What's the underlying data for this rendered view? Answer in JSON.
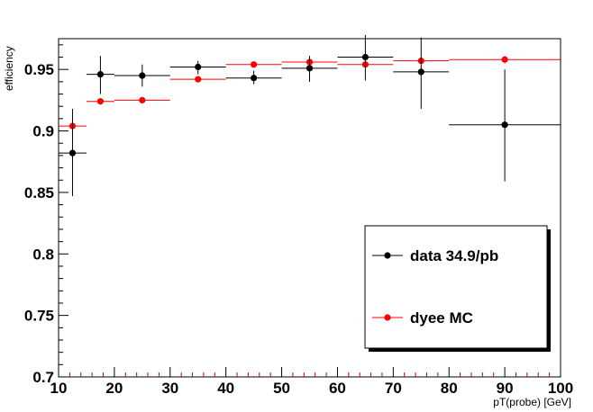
{
  "chart_data": {
    "type": "scatter",
    "xlabel": "pT(probe) [GeV]",
    "ylabel": "efficiency",
    "xlim": [
      10,
      100
    ],
    "ylim": [
      0.7,
      0.975
    ],
    "x_ticks": [
      10,
      20,
      30,
      40,
      50,
      60,
      70,
      80,
      90,
      100
    ],
    "y_ticks": [
      0.7,
      0.75,
      0.8,
      0.85,
      0.9,
      0.95
    ],
    "x_tick_labels": [
      "10",
      "20",
      "30",
      "40",
      "50",
      "60",
      "70",
      "80",
      "90",
      "100"
    ],
    "y_tick_labels": [
      "0.7",
      "0.75",
      "0.8",
      "0.85",
      "0.9",
      "0.95"
    ],
    "grid": false,
    "legend_position": "bottom-right",
    "series": [
      {
        "name": "data 34.9/pb",
        "color": "#000000",
        "points": [
          {
            "x": 12.5,
            "y": 0.882,
            "xlow": 10,
            "xhigh": 15,
            "ylow": 0.847,
            "yhigh": 0.918
          },
          {
            "x": 17.5,
            "y": 0.946,
            "xlow": 15,
            "xhigh": 20,
            "ylow": 0.93,
            "yhigh": 0.961
          },
          {
            "x": 25,
            "y": 0.945,
            "xlow": 20,
            "xhigh": 30,
            "ylow": 0.936,
            "yhigh": 0.954
          },
          {
            "x": 35,
            "y": 0.952,
            "xlow": 30,
            "xhigh": 40,
            "ylow": 0.946,
            "yhigh": 0.957
          },
          {
            "x": 45,
            "y": 0.943,
            "xlow": 40,
            "xhigh": 50,
            "ylow": 0.938,
            "yhigh": 0.949
          },
          {
            "x": 55,
            "y": 0.951,
            "xlow": 50,
            "xhigh": 60,
            "ylow": 0.94,
            "yhigh": 0.961
          },
          {
            "x": 65,
            "y": 0.96,
            "xlow": 60,
            "xhigh": 70,
            "ylow": 0.941,
            "yhigh": 0.978
          },
          {
            "x": 75,
            "y": 0.948,
            "xlow": 70,
            "xhigh": 80,
            "ylow": 0.918,
            "yhigh": 0.976
          },
          {
            "x": 90,
            "y": 0.905,
            "xlow": 80,
            "xhigh": 100,
            "ylow": 0.859,
            "yhigh": 0.95
          }
        ]
      },
      {
        "name": "dyee MC",
        "color": "#ff0000",
        "points": [
          {
            "x": 12.5,
            "y": 0.904,
            "xlow": 10,
            "xhigh": 15,
            "ylow": 0.902,
            "yhigh": 0.907
          },
          {
            "x": 17.5,
            "y": 0.924,
            "xlow": 15,
            "xhigh": 20,
            "ylow": 0.923,
            "yhigh": 0.925
          },
          {
            "x": 25,
            "y": 0.925,
            "xlow": 20,
            "xhigh": 30,
            "ylow": 0.924,
            "yhigh": 0.926
          },
          {
            "x": 35,
            "y": 0.942,
            "xlow": 30,
            "xhigh": 40,
            "ylow": 0.941,
            "yhigh": 0.943
          },
          {
            "x": 45,
            "y": 0.954,
            "xlow": 40,
            "xhigh": 50,
            "ylow": 0.953,
            "yhigh": 0.955
          },
          {
            "x": 55,
            "y": 0.956,
            "xlow": 50,
            "xhigh": 60,
            "ylow": 0.955,
            "yhigh": 0.957
          },
          {
            "x": 65,
            "y": 0.954,
            "xlow": 60,
            "xhigh": 70,
            "ylow": 0.953,
            "yhigh": 0.955
          },
          {
            "x": 75,
            "y": 0.957,
            "xlow": 70,
            "xhigh": 80,
            "ylow": 0.955,
            "yhigh": 0.959
          },
          {
            "x": 90,
            "y": 0.958,
            "xlow": 80,
            "xhigh": 100,
            "ylow": 0.955,
            "yhigh": 0.961
          }
        ]
      }
    ]
  }
}
